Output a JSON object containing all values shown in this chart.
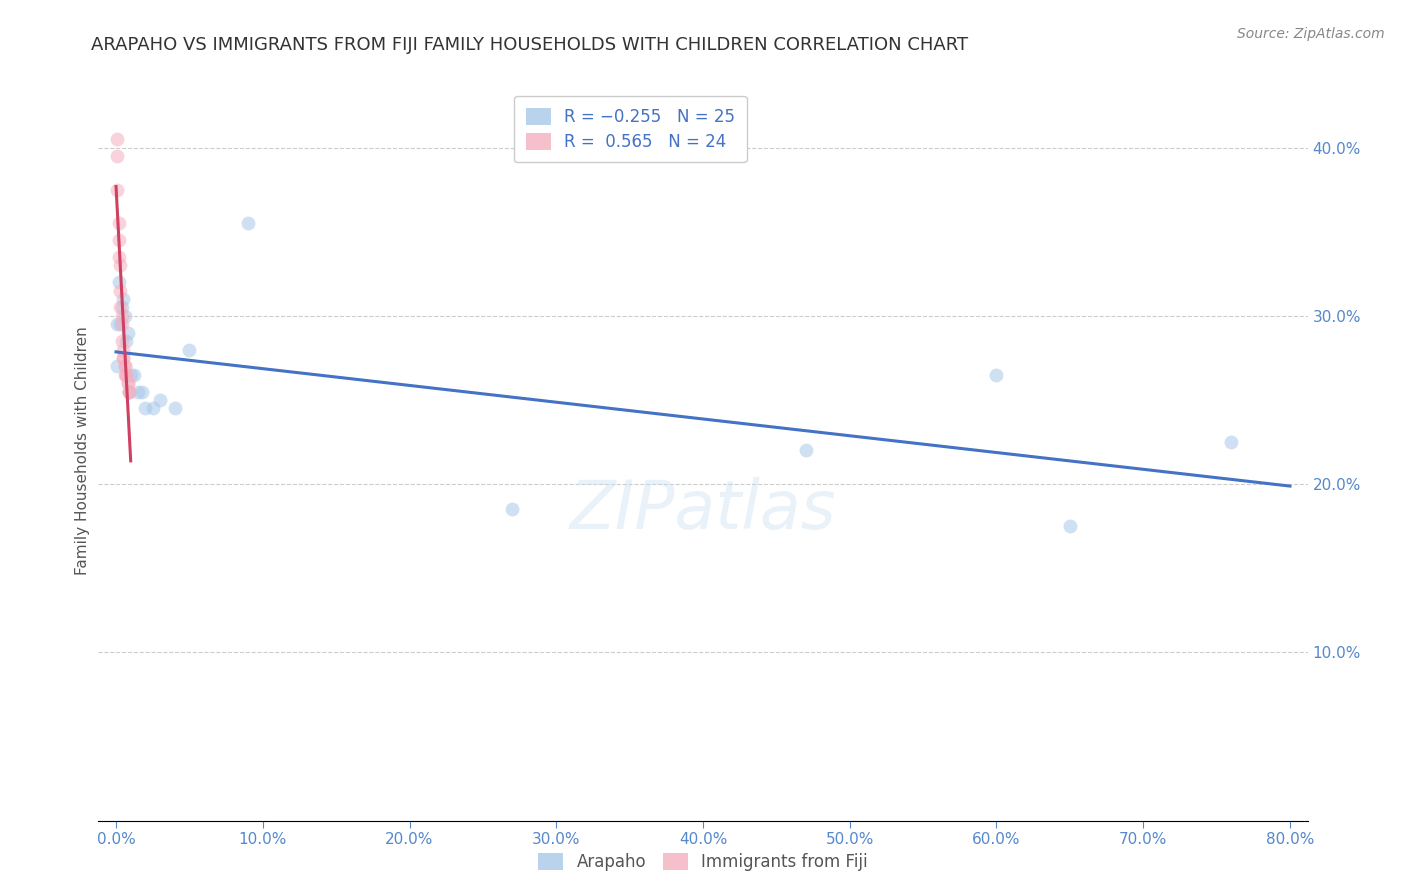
{
  "title": "ARAPAHO VS IMMIGRANTS FROM FIJI FAMILY HOUSEHOLDS WITH CHILDREN CORRELATION CHART",
  "source": "Source: ZipAtlas.com",
  "ylabel": "Family Households with Children",
  "watermark": "ZIPatlas",
  "arapaho_x": [
    0.001,
    0.001,
    0.002,
    0.003,
    0.004,
    0.005,
    0.006,
    0.007,
    0.008,
    0.009,
    0.01,
    0.012,
    0.015,
    0.018,
    0.02,
    0.025,
    0.03,
    0.04,
    0.05,
    0.27,
    0.47,
    0.6,
    0.65,
    0.76,
    0.09
  ],
  "arapaho_y": [
    0.295,
    0.27,
    0.32,
    0.295,
    0.305,
    0.31,
    0.3,
    0.285,
    0.29,
    0.255,
    0.265,
    0.265,
    0.255,
    0.255,
    0.245,
    0.245,
    0.25,
    0.245,
    0.28,
    0.185,
    0.22,
    0.265,
    0.175,
    0.225,
    0.355
  ],
  "fiji_x": [
    0.001,
    0.001,
    0.001,
    0.002,
    0.002,
    0.002,
    0.003,
    0.003,
    0.003,
    0.004,
    0.004,
    0.004,
    0.005,
    0.005,
    0.005,
    0.006,
    0.006,
    0.006,
    0.007,
    0.007,
    0.008,
    0.008,
    0.009,
    0.009
  ],
  "fiji_y": [
    0.405,
    0.395,
    0.375,
    0.355,
    0.345,
    0.335,
    0.33,
    0.315,
    0.305,
    0.3,
    0.295,
    0.285,
    0.28,
    0.275,
    0.275,
    0.27,
    0.27,
    0.265,
    0.265,
    0.265,
    0.26,
    0.26,
    0.255,
    0.255
  ],
  "arapaho_color": "#a8c8e8",
  "fiji_color": "#f4b0c0",
  "arapaho_trendline_color": "#4472c4",
  "fiji_trendline_color": "#d04060",
  "scatter_alpha": 0.55,
  "scatter_size": 100,
  "xlim": [
    -0.012,
    0.812
  ],
  "ylim": [
    0.0,
    0.44
  ],
  "xticks": [
    0.0,
    0.1,
    0.2,
    0.3,
    0.4,
    0.5,
    0.6,
    0.7,
    0.8
  ],
  "xtick_labels": [
    "0.0%",
    "10.0%",
    "20.0%",
    "30.0%",
    "40.0%",
    "50.0%",
    "60.0%",
    "70.0%",
    "80.0%"
  ],
  "yticks_right": [
    0.0,
    0.1,
    0.2,
    0.3,
    0.4
  ],
  "ytick_labels_right": [
    "",
    "10.0%",
    "20.0%",
    "30.0%",
    "40.0%"
  ],
  "grid_color": "#cccccc",
  "background_color": "#ffffff",
  "title_fontsize": 13,
  "axis_label_fontsize": 11,
  "tick_fontsize": 11,
  "legend_fontsize": 12,
  "source_fontsize": 10,
  "watermark_fontsize": 48,
  "watermark_color": "#c8ddf0",
  "watermark_alpha": 0.4
}
